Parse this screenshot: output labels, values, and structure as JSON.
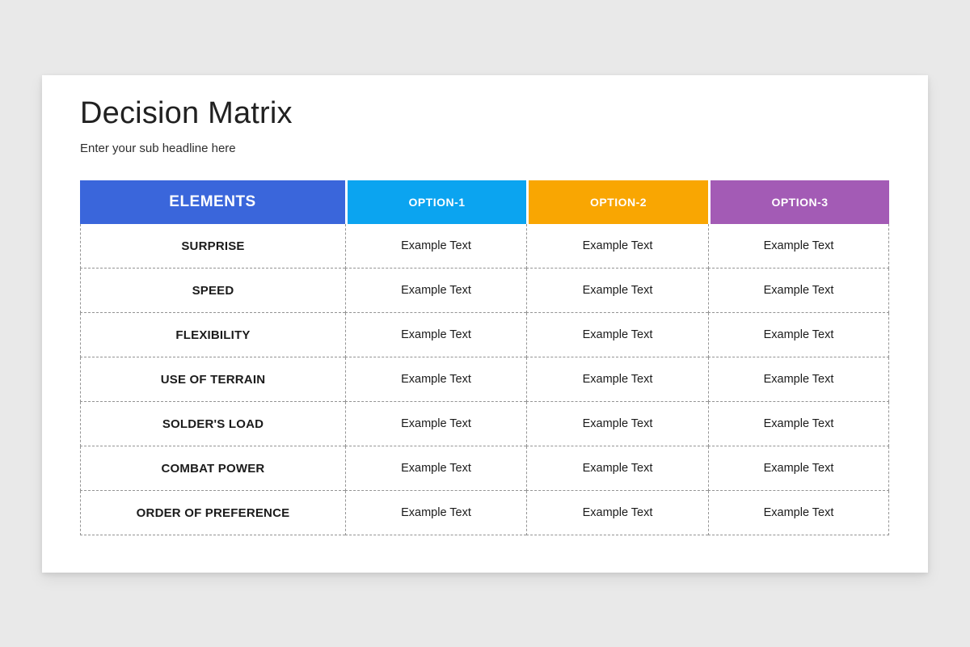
{
  "slide": {
    "title": "Decision Matrix",
    "subtitle": "Enter your sub headline here"
  },
  "table": {
    "columns": [
      {
        "label": "ELEMENTS",
        "color": "#3a66db"
      },
      {
        "label": "OPTION-1",
        "color": "#0ba4f0"
      },
      {
        "label": "OPTION-2",
        "color": "#f9a602"
      },
      {
        "label": "OPTION-3",
        "color": "#a35bb5"
      }
    ],
    "rows": [
      {
        "label": "SURPRISE",
        "cells": [
          "Example Text",
          "Example Text",
          "Example Text"
        ]
      },
      {
        "label": "SPEED",
        "cells": [
          "Example Text",
          "Example Text",
          "Example Text"
        ]
      },
      {
        "label": "FLEXIBILITY",
        "cells": [
          "Example Text",
          "Example Text",
          "Example Text"
        ]
      },
      {
        "label": "USE OF TERRAIN",
        "cells": [
          "Example Text",
          "Example Text",
          "Example Text"
        ]
      },
      {
        "label": "SOLDER'S LOAD",
        "cells": [
          "Example Text",
          "Example Text",
          "Example Text"
        ]
      },
      {
        "label": "COMBAT POWER",
        "cells": [
          "Example Text",
          "Example Text",
          "Example Text"
        ]
      },
      {
        "label": "ORDER OF PREFERENCE",
        "cells": [
          "Example Text",
          "Example Text",
          "Example Text"
        ]
      }
    ]
  }
}
